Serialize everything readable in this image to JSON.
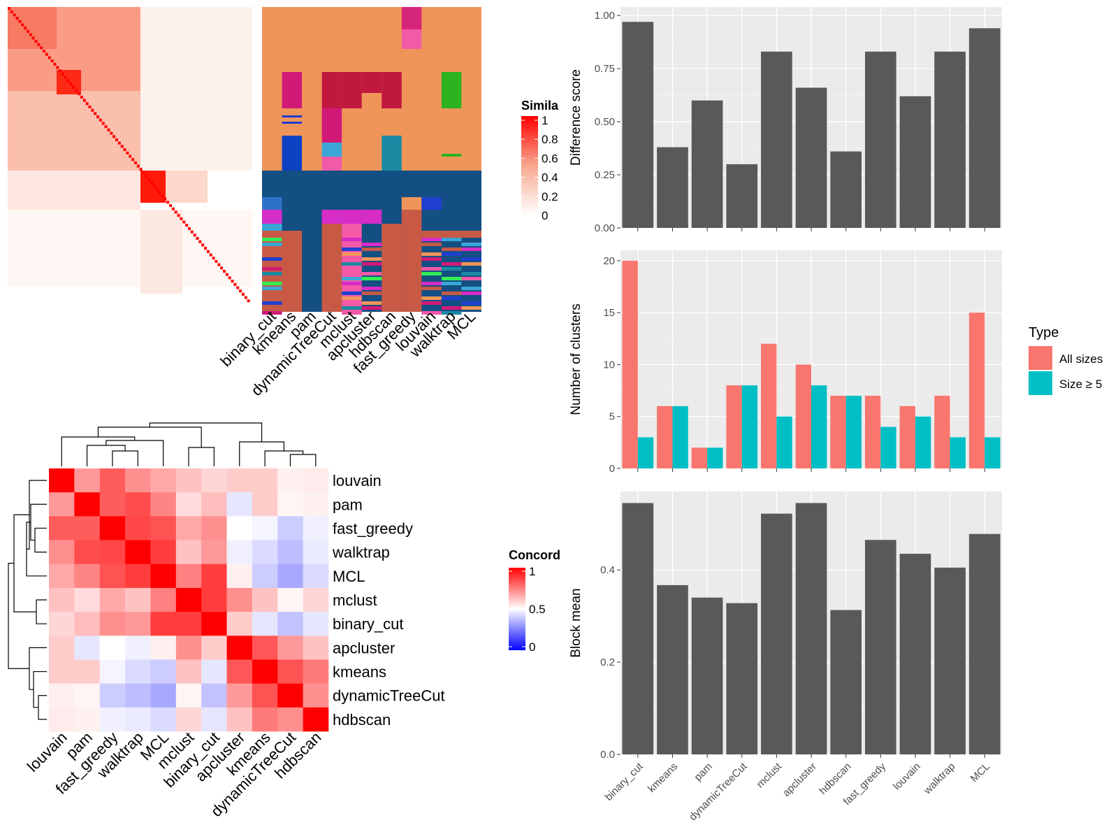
{
  "methods_similarity": [
    "binary_cut",
    "kmeans",
    "pam",
    "dynamicTreeCut",
    "mclust",
    "apcluster",
    "hdbscan",
    "fast_greedy",
    "louvain",
    "walktrap",
    "MCL"
  ],
  "similarity_legend": {
    "title": "Simila",
    "ticks": [
      "1",
      "0.8",
      "0.6",
      "0.4",
      "0.2",
      "0"
    ]
  },
  "concordance_heatmap": {
    "order": [
      "louvain",
      "pam",
      "fast_greedy",
      "walktrap",
      "MCL",
      "mclust",
      "binary_cut",
      "apcluster",
      "kmeans",
      "dynamicTreeCut",
      "hdbscan"
    ],
    "matrix": [
      [
        1.0,
        0.7,
        0.82,
        0.72,
        0.67,
        0.62,
        0.58,
        0.6,
        0.6,
        0.53,
        0.54
      ],
      [
        0.7,
        1.0,
        0.82,
        0.85,
        0.74,
        0.57,
        0.63,
        0.45,
        0.6,
        0.52,
        0.53
      ],
      [
        0.82,
        0.82,
        1.0,
        0.86,
        0.84,
        0.67,
        0.72,
        0.5,
        0.48,
        0.4,
        0.47
      ],
      [
        0.72,
        0.85,
        0.86,
        1.0,
        0.88,
        0.62,
        0.7,
        0.47,
        0.43,
        0.37,
        0.46
      ],
      [
        0.67,
        0.74,
        0.84,
        0.88,
        1.0,
        0.75,
        0.88,
        0.53,
        0.4,
        0.33,
        0.43
      ],
      [
        0.62,
        0.57,
        0.67,
        0.62,
        0.75,
        1.0,
        0.88,
        0.72,
        0.62,
        0.52,
        0.58
      ],
      [
        0.58,
        0.63,
        0.72,
        0.7,
        0.88,
        0.88,
        1.0,
        0.6,
        0.45,
        0.38,
        0.45
      ],
      [
        0.6,
        0.45,
        0.5,
        0.47,
        0.53,
        0.72,
        0.6,
        1.0,
        0.83,
        0.7,
        0.62
      ],
      [
        0.6,
        0.6,
        0.48,
        0.43,
        0.4,
        0.62,
        0.45,
        0.83,
        1.0,
        0.84,
        0.76
      ],
      [
        0.53,
        0.52,
        0.4,
        0.37,
        0.33,
        0.52,
        0.38,
        0.7,
        0.84,
        1.0,
        0.72
      ],
      [
        0.54,
        0.53,
        0.47,
        0.46,
        0.43,
        0.58,
        0.45,
        0.62,
        0.76,
        0.72,
        1.0
      ]
    ],
    "legend": {
      "title": "Concord",
      "ticks": [
        "1",
        "0.5",
        "0"
      ]
    }
  },
  "chart_data": [
    {
      "type": "bar",
      "categories": [
        "binary_cut",
        "kmeans",
        "pam",
        "dynamicTreeCut",
        "mclust",
        "apcluster",
        "hdbscan",
        "fast_greedy",
        "louvain",
        "walktrap",
        "MCL"
      ],
      "values": [
        0.97,
        0.38,
        0.6,
        0.3,
        0.83,
        0.66,
        0.36,
        0.83,
        0.62,
        0.83,
        0.94
      ],
      "ylabel": "Difference score",
      "ylim": [
        0,
        1.04
      ],
      "yticks": [
        "0.00",
        "0.25",
        "0.50",
        "0.75",
        "1.00"
      ],
      "color": "#595959"
    },
    {
      "type": "bar",
      "categories": [
        "binary_cut",
        "kmeans",
        "pam",
        "dynamicTreeCut",
        "mclust",
        "apcluster",
        "hdbscan",
        "fast_greedy",
        "louvain",
        "walktrap",
        "MCL"
      ],
      "series": [
        {
          "name": "All sizes",
          "values": [
            20,
            6,
            2,
            8,
            12,
            10,
            7,
            7,
            6,
            7,
            15
          ],
          "color": "#F8766D"
        },
        {
          "name": "Size ≥ 5",
          "values": [
            3,
            6,
            2,
            8,
            5,
            8,
            7,
            4,
            5,
            3,
            3
          ],
          "color": "#00BFC4"
        }
      ],
      "ylabel": "Number of clusters",
      "ylim": [
        0,
        21
      ],
      "yticks": [
        "0",
        "5",
        "10",
        "15",
        "20"
      ],
      "legend": {
        "title": "Type"
      }
    },
    {
      "type": "bar",
      "categories": [
        "binary_cut",
        "kmeans",
        "pam",
        "dynamicTreeCut",
        "mclust",
        "apcluster",
        "hdbscan",
        "fast_greedy",
        "louvain",
        "walktrap",
        "MCL"
      ],
      "values": [
        0.545,
        0.367,
        0.34,
        0.328,
        0.522,
        0.545,
        0.313,
        0.465,
        0.435,
        0.405,
        0.478
      ],
      "ylabel": "Block mean",
      "ylim": [
        0,
        0.57
      ],
      "yticks": [
        "0.0",
        "0.2",
        "0.4"
      ],
      "color": "#595959"
    }
  ]
}
